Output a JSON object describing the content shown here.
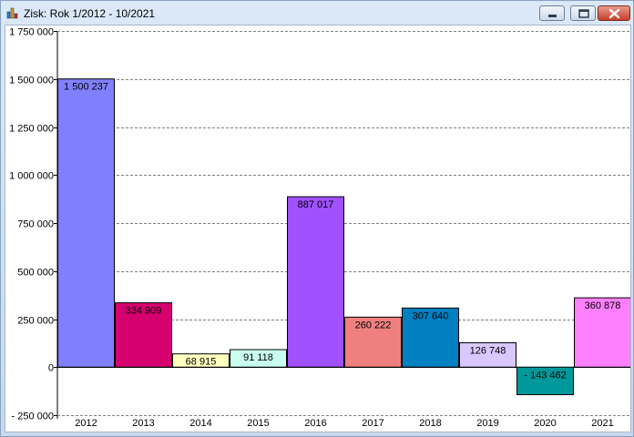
{
  "window": {
    "title": "Zisk: Rok 1/2012 - 10/2021",
    "app_icon": "bar-chart-icon",
    "controls": [
      "minimize-icon",
      "maximize-icon",
      "close-icon"
    ]
  },
  "chart_data": {
    "type": "bar",
    "title": "",
    "xlabel": "",
    "ylabel": "",
    "categories": [
      "2012",
      "2013",
      "2014",
      "2015",
      "2016",
      "2017",
      "2018",
      "2019",
      "2020",
      "2021"
    ],
    "values": [
      1500237,
      334909,
      68915,
      91118,
      887017,
      260222,
      307640,
      126748,
      -143462,
      360878
    ],
    "value_labels": [
      "1 500 237",
      "334 909",
      "68 915",
      "91 118",
      "887 017",
      "260 222",
      "307 640",
      "126 748",
      "- 143 462",
      "360 878"
    ],
    "colors": [
      "#8080ff",
      "#d6006f",
      "#ffffc0",
      "#c8fff0",
      "#a050ff",
      "#f08080",
      "#0080c0",
      "#d8c8ff",
      "#00989a",
      "#ff80ff"
    ],
    "ylim": [
      -250000,
      1750000
    ],
    "yticks": [
      -250000,
      0,
      250000,
      500000,
      750000,
      1000000,
      1250000,
      1500000,
      1750000
    ],
    "ytick_labels": [
      "- 250 000",
      "0",
      "250 000",
      "500 000",
      "750 000",
      "1 000 000",
      "1 250 000",
      "1 500 000",
      "1 750 000"
    ],
    "grid": true,
    "legend": "none"
  }
}
